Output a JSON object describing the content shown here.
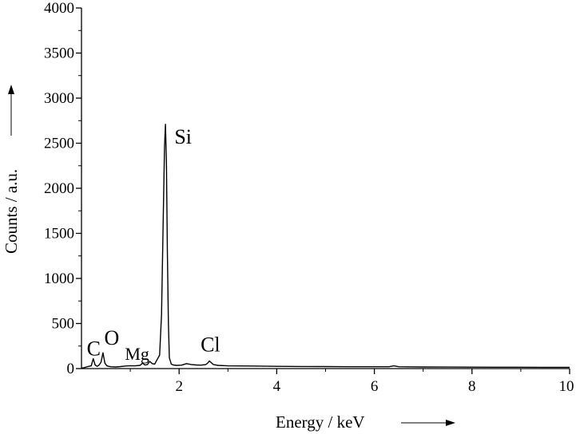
{
  "chart_data": {
    "type": "line",
    "title": "",
    "xlabel": "Energy / keV",
    "ylabel": "Counts / a.u.",
    "xlim": [
      0,
      10
    ],
    "ylim": [
      0,
      4000
    ],
    "x_ticks": [
      2,
      4,
      6,
      8,
      10
    ],
    "y_ticks": [
      0,
      500,
      1000,
      1500,
      2000,
      2500,
      3000,
      3500,
      4000
    ],
    "grid": false,
    "legend": "none",
    "line_color": "#000000",
    "series": [
      {
        "x": [
          0.0,
          0.05,
          0.1,
          0.15,
          0.2,
          0.24,
          0.28,
          0.32,
          0.36,
          0.4,
          0.44,
          0.48,
          0.52,
          0.56,
          0.6,
          0.7,
          0.8,
          0.9,
          1.0,
          1.1,
          1.2,
          1.25,
          1.3,
          1.35,
          1.4,
          1.45,
          1.5,
          1.55,
          1.6,
          1.64,
          1.68,
          1.7,
          1.72,
          1.74,
          1.76,
          1.78,
          1.8,
          1.84,
          1.88,
          1.95,
          2.05,
          2.15,
          2.25,
          2.35,
          2.45,
          2.55,
          2.6,
          2.62,
          2.65,
          2.7,
          2.8,
          3.0,
          3.5,
          4.0,
          4.5,
          5.0,
          5.5,
          6.0,
          6.3,
          6.4,
          6.5,
          7.0,
          7.5,
          8.0,
          8.5,
          9.0,
          9.5,
          10.0
        ],
        "y": [
          5,
          10,
          18,
          25,
          30,
          110,
          40,
          25,
          40,
          70,
          175,
          60,
          30,
          25,
          20,
          18,
          22,
          28,
          32,
          30,
          35,
          60,
          40,
          45,
          80,
          55,
          50,
          100,
          150,
          600,
          1800,
          2450,
          2710,
          2300,
          1300,
          500,
          120,
          50,
          40,
          35,
          38,
          55,
          45,
          40,
          38,
          45,
          70,
          85,
          70,
          45,
          35,
          30,
          28,
          25,
          23,
          22,
          20,
          20,
          20,
          30,
          20,
          18,
          17,
          16,
          15,
          15,
          14,
          14
        ]
      }
    ],
    "annotations": [
      {
        "text": "C",
        "x": 0.24,
        "y": 110
      },
      {
        "text": "O",
        "x": 0.5,
        "y": 175
      },
      {
        "text": "Mg",
        "x": 1.25,
        "y": 60
      },
      {
        "text": "Si",
        "x": 1.74,
        "y": 2710
      },
      {
        "text": "Cl",
        "x": 2.62,
        "y": 85
      }
    ]
  }
}
